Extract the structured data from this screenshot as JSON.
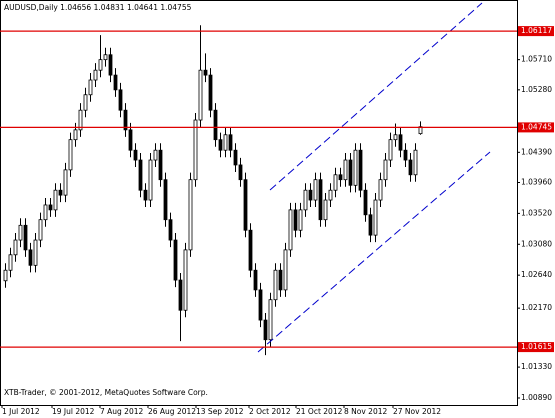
{
  "chart_data": {
    "type": "candlestick",
    "title": "AUDUSD,Daily  1.04656 1.04831 1.04641 1.04755",
    "footer": "XTB-Trader, © 2001-2012, MetaQuotes Software Corp.",
    "x_labels": [
      "1 Jul 2012",
      "19 Jul 2012",
      "7 Aug 2012",
      "26 Aug 2012",
      "13 Sep 2012",
      "2 Oct 2012",
      "21 Oct 2012",
      "8 Nov 2012",
      "27 Nov 2012"
    ],
    "ylim": [
      1.0079,
      1.0656
    ],
    "yticks": [
      {
        "value": 1.0571,
        "label": "1.05710"
      },
      {
        "value": 1.0528,
        "label": "1.05280"
      },
      {
        "value": 1.0439,
        "label": "1.04390"
      },
      {
        "value": 1.0396,
        "label": "1.03960"
      },
      {
        "value": 1.0352,
        "label": "1.03520"
      },
      {
        "value": 1.0308,
        "label": "1.03080"
      },
      {
        "value": 1.0264,
        "label": "1.02640"
      },
      {
        "value": 1.0217,
        "label": "1.02170"
      },
      {
        "value": 1.0133,
        "label": "1.01330"
      },
      {
        "value": 1.0089,
        "label": "1.00890"
      }
    ],
    "levels": [
      {
        "value": 1.06117,
        "label": "1.06117"
      },
      {
        "value": 1.04745,
        "label": "1.04745"
      },
      {
        "value": 1.01615,
        "label": "1.01615"
      }
    ],
    "level_color": "#e00000",
    "candle_color": "#000000",
    "ohlc": [
      [
        1.0256,
        1.0281,
        1.0246,
        1.0271
      ],
      [
        1.0271,
        1.0303,
        1.0261,
        1.0293
      ],
      [
        1.0293,
        1.0324,
        1.0283,
        1.0314
      ],
      [
        1.0314,
        1.0345,
        1.0304,
        1.0335
      ],
      [
        1.0335,
        1.0345,
        1.029,
        1.03
      ],
      [
        1.03,
        1.031,
        1.0268,
        1.0278
      ],
      [
        1.0278,
        1.0324,
        1.0268,
        1.0314
      ],
      [
        1.0314,
        1.0353,
        1.0304,
        1.0343
      ],
      [
        1.0343,
        1.0374,
        1.0333,
        1.0364
      ],
      [
        1.0364,
        1.0374,
        1.0347,
        1.0357
      ],
      [
        1.0357,
        1.0395,
        1.0347,
        1.0385
      ],
      [
        1.0385,
        1.0395,
        1.0368,
        1.0378
      ],
      [
        1.0378,
        1.0424,
        1.0368,
        1.0414
      ],
      [
        1.0414,
        1.0467,
        1.0404,
        1.0457
      ],
      [
        1.0457,
        1.0481,
        1.0447,
        1.0471
      ],
      [
        1.0471,
        1.0509,
        1.0461,
        1.0499
      ],
      [
        1.0499,
        1.0531,
        1.0489,
        1.0521
      ],
      [
        1.0521,
        1.0552,
        1.0511,
        1.0542
      ],
      [
        1.0542,
        1.0566,
        1.0532,
        1.0556
      ],
      [
        1.0556,
        1.0606,
        1.0546,
        1.0571
      ],
      [
        1.0571,
        1.0588,
        1.0561,
        1.0578
      ],
      [
        1.0578,
        1.0588,
        1.0539,
        1.0549
      ],
      [
        1.0549,
        1.0559,
        1.0518,
        1.0528
      ],
      [
        1.0528,
        1.0538,
        1.0489,
        1.0499
      ],
      [
        1.0499,
        1.0509,
        1.0461,
        1.0471
      ],
      [
        1.0471,
        1.0481,
        1.0432,
        1.0442
      ],
      [
        1.0442,
        1.0452,
        1.0418,
        1.0428
      ],
      [
        1.0428,
        1.0438,
        1.0375,
        1.0385
      ],
      [
        1.0385,
        1.0395,
        1.0361,
        1.0371
      ],
      [
        1.0371,
        1.0438,
        1.0361,
        1.0428
      ],
      [
        1.0428,
        1.0452,
        1.0418,
        1.0442
      ],
      [
        1.0442,
        1.0452,
        1.039,
        1.04
      ],
      [
        1.04,
        1.041,
        1.0333,
        1.0343
      ],
      [
        1.0343,
        1.0353,
        1.0304,
        1.0314
      ],
      [
        1.0314,
        1.0324,
        1.0247,
        1.0257
      ],
      [
        1.0257,
        1.0267,
        1.017,
        1.0214
      ],
      [
        1.0214,
        1.031,
        1.0204,
        1.03
      ],
      [
        1.03,
        1.041,
        1.029,
        1.04
      ],
      [
        1.04,
        1.0495,
        1.039,
        1.0485
      ],
      [
        1.0485,
        1.062,
        1.0475,
        1.0556
      ],
      [
        1.0556,
        1.058,
        1.0539,
        1.0549
      ],
      [
        1.0549,
        1.0559,
        1.0489,
        1.0499
      ],
      [
        1.0499,
        1.0509,
        1.0447,
        1.0457
      ],
      [
        1.0457,
        1.0467,
        1.0432,
        1.0442
      ],
      [
        1.0442,
        1.0474,
        1.0432,
        1.0464
      ],
      [
        1.0464,
        1.0474,
        1.0432,
        1.0442
      ],
      [
        1.0442,
        1.0452,
        1.0411,
        1.0421
      ],
      [
        1.0421,
        1.0431,
        1.039,
        1.04
      ],
      [
        1.04,
        1.041,
        1.0318,
        1.0328
      ],
      [
        1.0328,
        1.0338,
        1.0261,
        1.0271
      ],
      [
        1.0271,
        1.0281,
        1.0233,
        1.0243
      ],
      [
        1.0243,
        1.0253,
        1.019,
        1.02
      ],
      [
        1.02,
        1.021,
        1.015,
        1.0172
      ],
      [
        1.0172,
        1.0239,
        1.0162,
        1.0229
      ],
      [
        1.0229,
        1.0281,
        1.0219,
        1.0271
      ],
      [
        1.0271,
        1.0281,
        1.0233,
        1.0243
      ],
      [
        1.0243,
        1.031,
        1.0233,
        1.03
      ],
      [
        1.03,
        1.0367,
        1.029,
        1.0357
      ],
      [
        1.0357,
        1.0367,
        1.0318,
        1.0328
      ],
      [
        1.0328,
        1.0367,
        1.0318,
        1.0357
      ],
      [
        1.0357,
        1.0395,
        1.0347,
        1.0385
      ],
      [
        1.0385,
        1.0395,
        1.0361,
        1.0371
      ],
      [
        1.0371,
        1.041,
        1.0361,
        1.04
      ],
      [
        1.04,
        1.041,
        1.0333,
        1.0343
      ],
      [
        1.0343,
        1.0381,
        1.0333,
        1.0371
      ],
      [
        1.0371,
        1.0395,
        1.0361,
        1.0385
      ],
      [
        1.0385,
        1.0417,
        1.0375,
        1.0407
      ],
      [
        1.0407,
        1.0417,
        1.039,
        1.04
      ],
      [
        1.04,
        1.0438,
        1.039,
        1.0428
      ],
      [
        1.0428,
        1.0438,
        1.0382,
        1.0392
      ],
      [
        1.0392,
        1.0452,
        1.0382,
        1.0442
      ],
      [
        1.0442,
        1.0452,
        1.0375,
        1.0385
      ],
      [
        1.0385,
        1.0395,
        1.034,
        1.035
      ],
      [
        1.035,
        1.036,
        1.0311,
        1.0321
      ],
      [
        1.0321,
        1.0381,
        1.0311,
        1.0371
      ],
      [
        1.0371,
        1.041,
        1.0361,
        1.04
      ],
      [
        1.04,
        1.0438,
        1.039,
        1.0428
      ],
      [
        1.0428,
        1.0467,
        1.0418,
        1.0457
      ],
      [
        1.0457,
        1.048,
        1.0447,
        1.0464
      ],
      [
        1.0464,
        1.0474,
        1.0432,
        1.0442
      ],
      [
        1.0442,
        1.0452,
        1.0418,
        1.0428
      ],
      [
        1.0428,
        1.0438,
        1.0397,
        1.0407
      ],
      [
        1.0407,
        1.0452,
        1.0397,
        1.0442
      ],
      [
        1.04656,
        1.04831,
        1.04641,
        1.04755
      ]
    ]
  }
}
